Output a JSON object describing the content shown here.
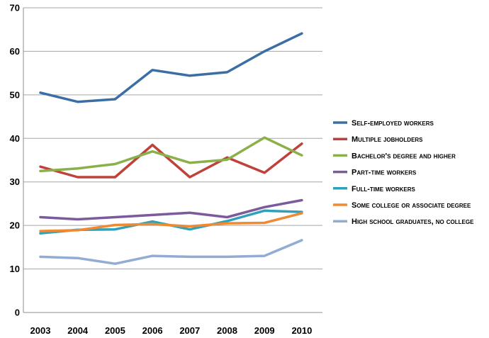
{
  "chart_data": {
    "type": "line",
    "title": "",
    "xlabel": "",
    "ylabel": "",
    "categories": [
      "2003",
      "2004",
      "2005",
      "2006",
      "2007",
      "2008",
      "2009",
      "2010"
    ],
    "ylim": [
      0,
      70
    ],
    "yticks": [
      0,
      10,
      20,
      30,
      40,
      50,
      60,
      70
    ],
    "grid": "horizontal",
    "legend_position": "right",
    "series": [
      {
        "name": "Self-employed workers",
        "color": "#3a6ea5",
        "values": [
          50.5,
          48.4,
          49.0,
          55.7,
          54.4,
          55.2,
          60.0,
          64.1
        ]
      },
      {
        "name": "Multiple jobholders",
        "color": "#c0413b",
        "values": [
          33.5,
          31.1,
          31.1,
          38.5,
          31.1,
          35.6,
          32.1,
          38.8
        ]
      },
      {
        "name": "Bachelor's degree and higher",
        "color": "#8ab04a",
        "values": [
          32.5,
          33.1,
          34.1,
          37.0,
          34.4,
          35.1,
          40.2,
          36.1
        ]
      },
      {
        "name": "Part-time workers",
        "color": "#7b5a9e",
        "values": [
          21.9,
          21.4,
          21.9,
          22.4,
          22.9,
          21.9,
          24.2,
          25.8
        ]
      },
      {
        "name": "Full-time workers",
        "color": "#2fa1b8",
        "values": [
          18.2,
          19.0,
          19.1,
          20.9,
          19.1,
          21.0,
          23.4,
          23.1
        ]
      },
      {
        "name": "Some college or associate degree",
        "color": "#ef8a33",
        "values": [
          18.7,
          18.9,
          20.1,
          20.3,
          19.8,
          20.5,
          20.6,
          22.8
        ]
      },
      {
        "name": "High school graduates, no college",
        "color": "#92acd4",
        "values": [
          12.8,
          12.5,
          11.2,
          13.0,
          12.8,
          12.8,
          13.0,
          16.6
        ]
      }
    ]
  }
}
